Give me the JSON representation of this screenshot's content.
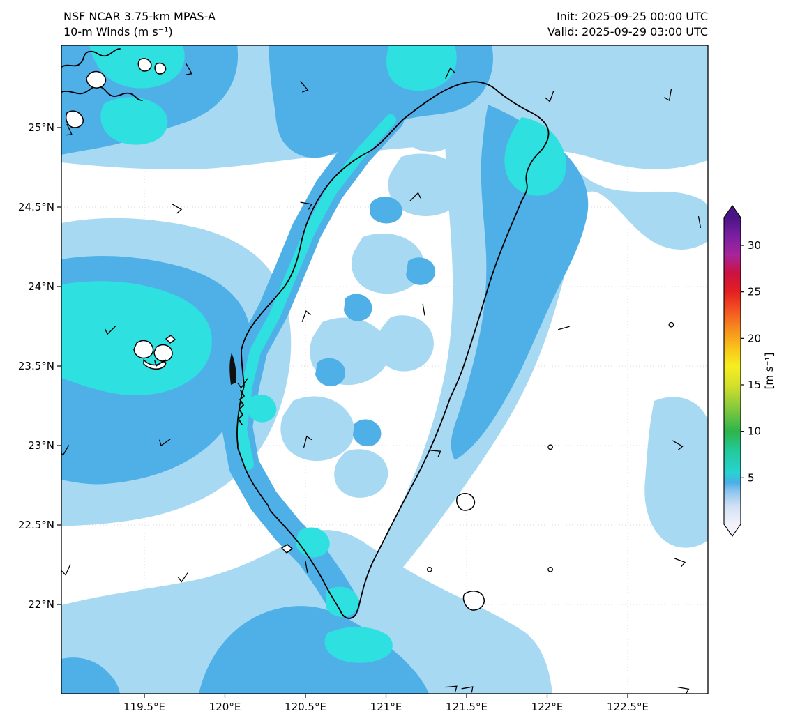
{
  "header": {
    "left": [
      "NSF NCAR 3.75-km MPAS-A",
      "10-m Winds (m s⁻¹)"
    ],
    "right": [
      "Init: 2025-09-25 00:00 UTC",
      "Valid: 2025-09-29 03:00 UTC"
    ]
  },
  "chart_data": {
    "type": "filled_contour_map",
    "variable": "10-m wind speed",
    "units": "m s⁻¹",
    "model": "NSF NCAR 3.75-km MPAS-A",
    "init_time": "2025-09-25 00:00 UTC",
    "valid_time": "2025-09-29 03:00 UTC",
    "lon_range": [
      118.98,
      123.0
    ],
    "lat_range": [
      21.44,
      25.52
    ],
    "x_ticks": [
      {
        "lon": 119.5,
        "label": "119.5°E"
      },
      {
        "lon": 120.0,
        "label": "120°E"
      },
      {
        "lon": 120.5,
        "label": "120.5°E"
      },
      {
        "lon": 121.0,
        "label": "121°E"
      },
      {
        "lon": 121.5,
        "label": "121.5°E"
      },
      {
        "lon": 122.0,
        "label": "122°E"
      },
      {
        "lon": 122.5,
        "label": "122.5°E"
      }
    ],
    "y_ticks": [
      {
        "lat": 25.0,
        "label": "25°N"
      },
      {
        "lat": 24.5,
        "label": "24.5°N"
      },
      {
        "lat": 24.0,
        "label": "24°N"
      },
      {
        "lat": 23.5,
        "label": "23.5°N"
      },
      {
        "lat": 23.0,
        "label": "23°N"
      },
      {
        "lat": 22.5,
        "label": "22.5°N"
      },
      {
        "lat": 22.0,
        "label": "22°N"
      }
    ],
    "colorbar": {
      "label": "[m s⁻¹]",
      "ticks": [
        5,
        10,
        15,
        20,
        25,
        30
      ],
      "vmin": 0,
      "vmax": 33,
      "extend": "both",
      "stops": [
        {
          "v": 0,
          "color": "#f3f2fb"
        },
        {
          "v": 2,
          "color": "#cfe0f5"
        },
        {
          "v": 3.5,
          "color": "#8fc6ee"
        },
        {
          "v": 4.5,
          "color": "#4aaee8"
        },
        {
          "v": 5.5,
          "color": "#28d3d3"
        },
        {
          "v": 8,
          "color": "#23c998"
        },
        {
          "v": 10,
          "color": "#2db44b"
        },
        {
          "v": 12.5,
          "color": "#85c93d"
        },
        {
          "v": 15,
          "color": "#d5e02b"
        },
        {
          "v": 17,
          "color": "#f6ee20"
        },
        {
          "v": 19,
          "color": "#f8c31a"
        },
        {
          "v": 21,
          "color": "#f78d1e"
        },
        {
          "v": 23,
          "color": "#f35422"
        },
        {
          "v": 25,
          "color": "#e32020"
        },
        {
          "v": 27,
          "color": "#cb1240"
        },
        {
          "v": 29,
          "color": "#a6259b"
        },
        {
          "v": 31,
          "color": "#7b1fa2"
        },
        {
          "v": 33,
          "color": "#4a1486"
        }
      ]
    },
    "fill_levels": [
      {
        "min": 0,
        "max": 2,
        "color": "#ffffff"
      },
      {
        "min": 2,
        "max": 4,
        "color": "#a8d9f2"
      },
      {
        "min": 4,
        "max": 5,
        "color": "#4fb0e8"
      },
      {
        "min": 5,
        "max": 8,
        "color": "#2ee1e0"
      }
    ],
    "wind_barbs": [
      {
        "lon": 119.76,
        "lat": 25.4,
        "dir": 150,
        "speed": 2.5
      },
      {
        "lon": 120.47,
        "lat": 25.29,
        "dir": 140,
        "speed": 2.5
      },
      {
        "lon": 121.37,
        "lat": 25.31,
        "dir": 25,
        "speed": 2.5
      },
      {
        "lon": 122.04,
        "lat": 25.23,
        "dir": 200,
        "speed": 2.5
      },
      {
        "lon": 122.77,
        "lat": 25.24,
        "dir": 190,
        "speed": 2.5
      },
      {
        "lon": 119.02,
        "lat": 25.02,
        "dir": 155,
        "speed": 2.5
      },
      {
        "lon": 119.67,
        "lat": 24.52,
        "dir": 120,
        "speed": 2.5
      },
      {
        "lon": 120.47,
        "lat": 24.53,
        "dir": 100,
        "speed": 2.5
      },
      {
        "lon": 122.94,
        "lat": 24.44,
        "dir": 170,
        "speed": 1.5
      },
      {
        "lon": 119.32,
        "lat": 23.75,
        "dir": 225,
        "speed": 2.5
      },
      {
        "lon": 120.14,
        "lat": 23.42,
        "dir": 215,
        "speed": 2.5
      },
      {
        "lon": 120.48,
        "lat": 23.78,
        "dir": 20,
        "speed": 2.5
      },
      {
        "lon": 122.07,
        "lat": 23.73,
        "dir": 75,
        "speed": 1.5
      },
      {
        "lon": 122.77,
        "lat": 23.76,
        "dir": 0,
        "speed": 0,
        "calm": true
      },
      {
        "lon": 119.63,
        "lat": 23.54,
        "dir": 235,
        "speed": 2.5
      },
      {
        "lon": 119.03,
        "lat": 23.0,
        "dir": 210,
        "speed": 2.5
      },
      {
        "lon": 119.66,
        "lat": 23.04,
        "dir": 235,
        "speed": 2.5
      },
      {
        "lon": 120.49,
        "lat": 22.99,
        "dir": 15,
        "speed": 2.5
      },
      {
        "lon": 121.27,
        "lat": 22.97,
        "dir": 95,
        "speed": 2.5
      },
      {
        "lon": 122.02,
        "lat": 22.99,
        "dir": 0,
        "speed": 0,
        "calm": true
      },
      {
        "lon": 122.78,
        "lat": 23.03,
        "dir": 120,
        "speed": 2.5
      },
      {
        "lon": 119.04,
        "lat": 22.25,
        "dir": 205,
        "speed": 2.5
      },
      {
        "lon": 119.77,
        "lat": 22.2,
        "dir": 215,
        "speed": 2.5
      },
      {
        "lon": 120.5,
        "lat": 22.27,
        "dir": 170,
        "speed": 1.5
      },
      {
        "lon": 121.27,
        "lat": 22.22,
        "dir": 0,
        "speed": 0,
        "calm": true
      },
      {
        "lon": 122.02,
        "lat": 22.22,
        "dir": 0,
        "speed": 0,
        "calm": true
      },
      {
        "lon": 122.79,
        "lat": 22.29,
        "dir": 110,
        "speed": 2.5
      },
      {
        "lon": 121.37,
        "lat": 21.48,
        "dir": 85,
        "speed": 2.5
      },
      {
        "lon": 121.47,
        "lat": 21.47,
        "dir": 80,
        "speed": 2.5
      },
      {
        "lon": 122.81,
        "lat": 21.48,
        "dir": 100,
        "speed": 2.5
      },
      {
        "lon": 121.15,
        "lat": 24.54,
        "dir": 45,
        "speed": 2.5
      },
      {
        "lon": 121.24,
        "lat": 23.82,
        "dir": 350,
        "speed": 1.5
      }
    ]
  },
  "map": {
    "features": [
      "Taiwan coastline",
      "Penghu Islands",
      "mainland China coast fragment",
      "Green Island",
      "Orchid Island"
    ]
  }
}
